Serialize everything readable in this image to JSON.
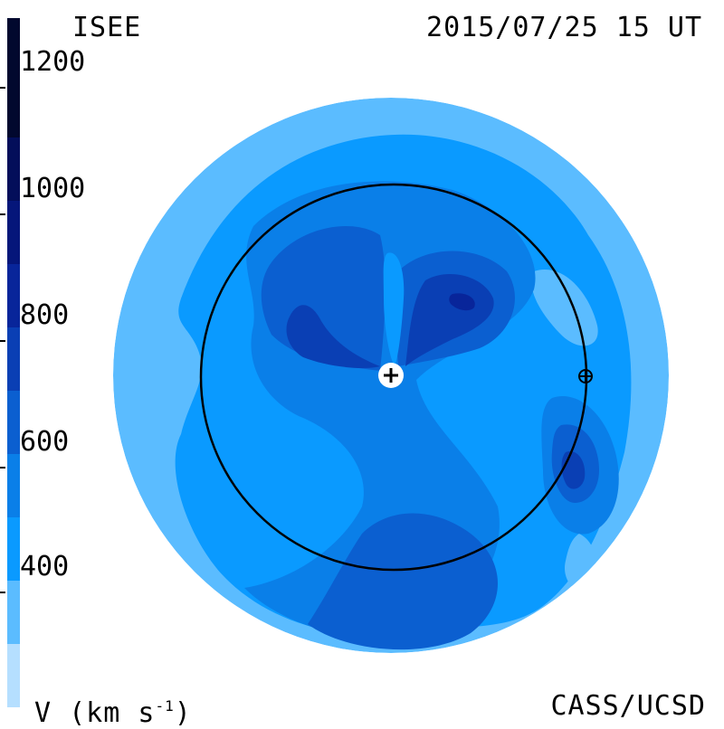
{
  "header": {
    "left_label": "ISEE",
    "right_label": "2015/07/25 15 UT"
  },
  "footer": {
    "left_label": "V (km s",
    "left_superscript": "-1",
    "left_suffix": ")",
    "right_label": "CASS/UCSD"
  },
  "colorbar": {
    "ticks": [
      "1200",
      "1000",
      "800",
      "600",
      "400"
    ],
    "colors": [
      "#b5dfff",
      "#5bbcff",
      "#0a9aff",
      "#0a7fe8",
      "#0b5fd0",
      "#0a3fb4",
      "#08259a",
      "#05167a",
      "#030e5a",
      "#01082e"
    ]
  },
  "map": {
    "base_color": "#5bbcff",
    "ring": "orbit",
    "sun_marker": "sun-symbol",
    "earth_marker": "earth-symbol"
  }
}
